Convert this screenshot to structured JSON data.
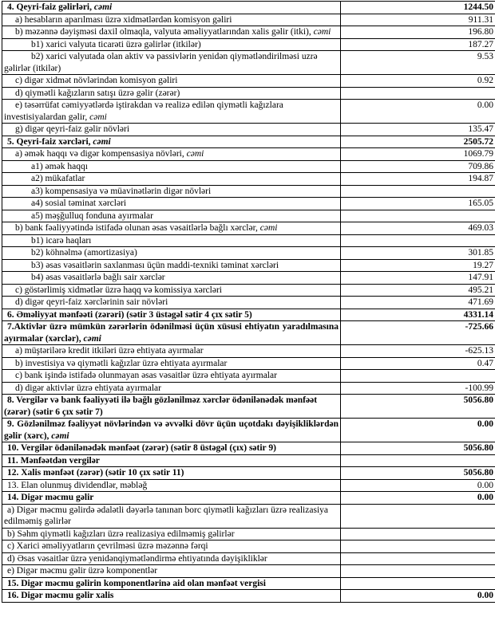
{
  "document": {
    "type": "bank-income-statement-fragment",
    "language": "Azerbaijani",
    "colors": {
      "background": "#ffffff",
      "text": "#000000",
      "border": "#000000"
    },
    "table": {
      "columns": [
        "indicator",
        "amount"
      ],
      "rows": [
        {
          "label": "4. Qeyri-faiz gəlirləri, ",
          "italic_suffix": "cəmi",
          "value": "1244.50",
          "bold": true,
          "indent": 0,
          "justify": false
        },
        {
          "label": "a) hesabların aparılması üzrə xidmətlərdən komisyon gəliri",
          "italic_suffix": "",
          "value": "911.31",
          "bold": false,
          "indent": 1,
          "justify": false
        },
        {
          "label": "b) məzənnə dəyişməsi daxil olmaqla, valyuta əməliyyatlarından xalis gəlir (itki), ",
          "italic_suffix": "cəmi",
          "value": "196.80",
          "bold": false,
          "indent": 1,
          "justify": false
        },
        {
          "label": "b1) xarici valyuta ticarəti üzrə gəlirlər (itkilər)",
          "italic_suffix": "",
          "value": "187.27",
          "bold": false,
          "indent": 2,
          "justify": false
        },
        {
          "label": "b2) xarici valyutada olan aktiv və passivlərin yenidən qiymətləndirilməsi uzrə gəlirlər (itkilər)",
          "italic_suffix": "",
          "value": "9.53",
          "bold": false,
          "indent": 2,
          "justify": false
        },
        {
          "label": "c) digər xidmət növlərindən komisyon gəliri",
          "italic_suffix": "",
          "value": "0.92",
          "bold": false,
          "indent": 1,
          "justify": false
        },
        {
          "label": "d) qiymətli kağızların satışı üzrə gəlir (zərər)",
          "italic_suffix": "",
          "value": "",
          "bold": false,
          "indent": 1,
          "justify": false
        },
        {
          "label": "e) təsərrüfat cəmiyyətlərdə iştirakdan və realizə edilən qiymətli kağızlara investisiyalardan gəlir, ",
          "italic_suffix": "cəmi",
          "value": "0.00",
          "bold": false,
          "indent": 1,
          "justify": false
        },
        {
          "label": "g) digər qeyri-faiz gəlir növləri",
          "italic_suffix": "",
          "value": "135.47",
          "bold": false,
          "indent": 1,
          "justify": false
        },
        {
          "label": "5. Qeyri-faiz xərcləri, ",
          "italic_suffix": "cəmi",
          "value": "2505.72",
          "bold": true,
          "indent": 0,
          "justify": false
        },
        {
          "label": "a) əmək haqqı və digər kompensasiya növləri, ",
          "italic_suffix": "cəmi",
          "value": "1069.79",
          "bold": false,
          "indent": 1,
          "justify": false
        },
        {
          "label": "a1) əmək haqqı",
          "italic_suffix": "",
          "value": "709.86",
          "bold": false,
          "indent": 2,
          "justify": false
        },
        {
          "label": "a2) mükafatlar",
          "italic_suffix": "",
          "value": "194.87",
          "bold": false,
          "indent": 2,
          "justify": false
        },
        {
          "label": "a3) kompensasiya və müavinətlərin digər növləri",
          "italic_suffix": "",
          "value": "",
          "bold": false,
          "indent": 2,
          "justify": false
        },
        {
          "label": "a4) sosial təminat xərcləri",
          "italic_suffix": "",
          "value": "165.05",
          "bold": false,
          "indent": 2,
          "justify": false
        },
        {
          "label": "a5) məşğulluq fonduna ayırmalar",
          "italic_suffix": "",
          "value": "",
          "bold": false,
          "indent": 2,
          "justify": false
        },
        {
          "label": "b) bank fəaliyyətində istifadə olunan əsas vəsaitlərlə bağlı xərclər, ",
          "italic_suffix": "cəmi",
          "value": "469.03",
          "bold": false,
          "indent": 1,
          "justify": false
        },
        {
          "label": "b1) icarə haqları",
          "italic_suffix": "",
          "value": "",
          "bold": false,
          "indent": 2,
          "justify": false
        },
        {
          "label": "b2) köhnəlmə (amortizasiya)",
          "italic_suffix": "",
          "value": "301.85",
          "bold": false,
          "indent": 2,
          "justify": false
        },
        {
          "label": "b3) əsas vəsaitlərin saxlanması üçün maddi-texniki təminat xərcləri",
          "italic_suffix": "",
          "value": "19.27",
          "bold": false,
          "indent": 2,
          "justify": false
        },
        {
          "label": "b4) əsas vəsaitlərlə bağlı sair xərclər",
          "italic_suffix": "",
          "value": "147.91",
          "bold": false,
          "indent": 2,
          "justify": false
        },
        {
          "label": "c) göstərlimiş xidmətlər üzrə haqq və komissiya xərcləri",
          "italic_suffix": "",
          "value": "495.21",
          "bold": false,
          "indent": 1,
          "justify": false
        },
        {
          "label": "d) digər qeyri-faiz xərclərinin sair növləri",
          "italic_suffix": "",
          "value": "471.69",
          "bold": false,
          "indent": 1,
          "justify": false
        },
        {
          "label": "6. Əməliyyat mənfəəti (zərəri) (sətir 3 üstəgəl sətir 4 çıx sətir 5)",
          "italic_suffix": "",
          "value": "4331.14",
          "bold": true,
          "indent": 0,
          "justify": false
        },
        {
          "label": "7.Aktivlər üzrə mümkün zərərlərin ödənilməsi üçün xüsusi ehtiyatın yaradılmasına ayırmalar (xərclər), ",
          "italic_suffix": "cəmi",
          "value": "-725.66",
          "bold": true,
          "indent": 0,
          "justify": true
        },
        {
          "label": "a) müştərilərə kredit itkiləri üzrə ehtiyata ayırmalar",
          "italic_suffix": "",
          "value": "-625.13",
          "bold": false,
          "indent": 1,
          "justify": false
        },
        {
          "label": "b) investisiya və qiymətli kağızlar üzrə ehtiyata ayırmalar",
          "italic_suffix": "",
          "value": "0.47",
          "bold": false,
          "indent": 1,
          "justify": false
        },
        {
          "label": "c) bank işində istifadə olunmayan əsas vəsaitlər üzrə ehtiyata ayırmalar",
          "italic_suffix": "",
          "value": "",
          "bold": false,
          "indent": 1,
          "justify": false
        },
        {
          "label": "d) digər aktivlər üzrə ehtiyata ayırmalar",
          "italic_suffix": "",
          "value": "-100.99",
          "bold": false,
          "indent": 1,
          "justify": false
        },
        {
          "label": "8. Vergilər və bank fəaliyyəti ilə bağlı gözlənilməz xərclər ödənilənədək mənfəət (zərər) (sətir 6 çıx sətir 7)",
          "italic_suffix": "",
          "value": "5056.80",
          "bold": true,
          "indent": 0,
          "justify": false
        },
        {
          "label": "9. Gözlənilməz fəaliyyət növlərindən və əvvəlki dövr üçün uçotdakı dəyişikliklərdən gəlir (xərc), ",
          "italic_suffix": "cəmi",
          "value": "0.00",
          "bold": true,
          "indent": 0,
          "justify": true
        },
        {
          "label": "10. Vergilər ödənilənədək mənfəət (zərər) (sətir 8 üstəgəl (çıx) sətir 9)",
          "italic_suffix": "",
          "value": "5056.80",
          "bold": true,
          "indent": 0,
          "justify": false
        },
        {
          "label": "11. Mənfəətdən vergilər",
          "italic_suffix": "",
          "value": "",
          "bold": true,
          "indent": 0,
          "justify": false
        },
        {
          "label": "12. Xalis mənfəət (zərər) (sətir 10 çıx sətir 11)",
          "italic_suffix": "",
          "value": "5056.80",
          "bold": true,
          "indent": 0,
          "justify": false
        },
        {
          "label": "13. Elan olunmuş dividendlər, məbləğ",
          "italic_suffix": "",
          "value": "0.00",
          "bold": false,
          "indent": 0,
          "justify": false
        },
        {
          "label": "14. Digər məcmu gəlir",
          "italic_suffix": "",
          "value": "0.00",
          "bold": true,
          "indent": 0,
          "justify": false
        },
        {
          "label": "a) Digər məcmu gəlirdə ədalətli dəyərlə tanınan borc qiymətli kağızları üzrə realizasiya edilməmiş gəlirlər",
          "italic_suffix": "",
          "value": "",
          "bold": false,
          "indent": 0,
          "justify": false
        },
        {
          "label": "b) Səhm qiymətli kağızları üzrə realizasiya edilməmiş gəlirlər",
          "italic_suffix": "",
          "value": "",
          "bold": false,
          "indent": 0,
          "justify": false
        },
        {
          "label": "c) Xarici əməliyyatların çevrilməsi üzrə məzənnə fərqi",
          "italic_suffix": "",
          "value": "",
          "bold": false,
          "indent": 0,
          "justify": false
        },
        {
          "label": "d) Əsas vəsaitlər üzrə yenidənqiymətləndirmə ehtiyatında dəyişikliklər",
          "italic_suffix": "",
          "value": "",
          "bold": false,
          "indent": 0,
          "justify": false
        },
        {
          "label": "e) Digər məcmu gəlir üzrə komponentlər",
          "italic_suffix": "",
          "value": "",
          "bold": false,
          "indent": 0,
          "justify": false
        },
        {
          "label": "15. Digər məcmu gəlirin komponentlərinə aid olan mənfəət vergisi",
          "italic_suffix": "",
          "value": "",
          "bold": true,
          "indent": 0,
          "justify": false
        },
        {
          "label": "16. Digər məcmu gəlir xalis",
          "italic_suffix": "",
          "value": "0.00",
          "bold": true,
          "indent": 0,
          "justify": false
        }
      ]
    }
  }
}
